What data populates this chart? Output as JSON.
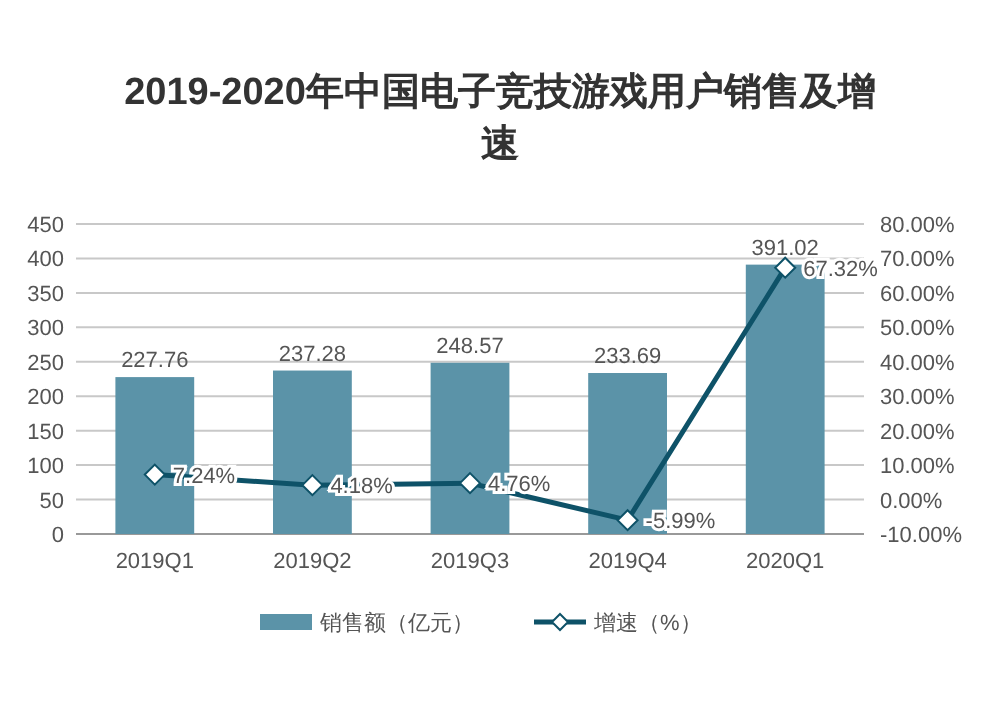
{
  "chart_data": {
    "type": "bar",
    "title": "2019-2020年中国电子竞技游戏用户销售及增速",
    "categories": [
      "2019Q1",
      "2019Q2",
      "2019Q3",
      "2019Q4",
      "2020Q1"
    ],
    "series": [
      {
        "name": "销售额（亿元）",
        "color": "#5b93a8",
        "values": [
          227.76,
          237.28,
          248.57,
          233.69,
          391.02
        ]
      },
      {
        "name": "增速（%）",
        "type": "line",
        "axis": "y2",
        "color": "#0e5268",
        "marker": "diamond",
        "values": [
          7.24,
          4.18,
          4.76,
          -5.99,
          67.32
        ],
        "value_labels": [
          "7.24%",
          "4.18%",
          "4.76%",
          "-5.99%",
          "67.32%"
        ]
      }
    ],
    "data_labels": true,
    "ylim": [
      0,
      450
    ],
    "yticks": [
      0,
      50,
      100,
      150,
      200,
      250,
      300,
      350,
      400,
      450
    ],
    "y2lim": [
      -10,
      80
    ],
    "y2ticks": [
      {
        "value": -10,
        "label": "-10.00%"
      },
      {
        "value": 0,
        "label": "0.00%"
      },
      {
        "value": 10,
        "label": "10.00%"
      },
      {
        "value": 20,
        "label": "20.00%"
      },
      {
        "value": 30,
        "label": "30.00%"
      },
      {
        "value": 40,
        "label": "40.00%"
      },
      {
        "value": 50,
        "label": "50.00%"
      },
      {
        "value": 60,
        "label": "60.00%"
      },
      {
        "value": 70,
        "label": "70.00%"
      },
      {
        "value": 80,
        "label": "80.00%"
      }
    ],
    "grid": "y",
    "legend": "bottom"
  }
}
